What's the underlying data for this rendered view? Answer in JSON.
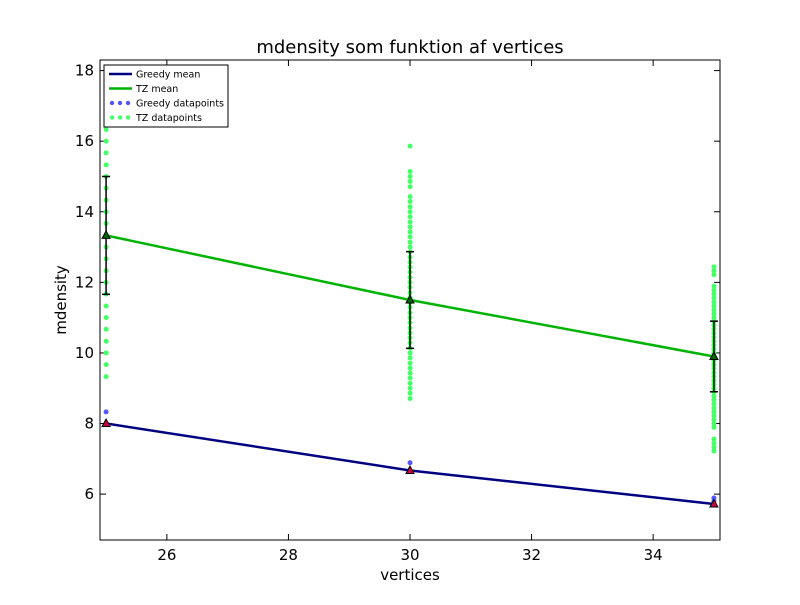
{
  "chart_data": {
    "type": "line",
    "title": "mdensity som funktion af vertices",
    "xlabel": "vertices",
    "ylabel": "mdensity",
    "xlim": [
      24.9,
      35.1
    ],
    "ylim": [
      4.7,
      18.3
    ],
    "xticks": [
      26,
      28,
      30,
      32,
      34
    ],
    "yticks": [
      6,
      8,
      10,
      12,
      14,
      16,
      18
    ],
    "grid": false,
    "legend_position": "top-left",
    "x": [
      25,
      30,
      35
    ],
    "series": [
      {
        "name": "Greedy mean",
        "color": "#000080",
        "values": [
          8.0,
          6.67,
          5.72
        ]
      },
      {
        "name": "TZ mean",
        "color": "#00b300",
        "values": [
          13.33,
          11.5,
          9.9
        ],
        "errors": [
          1.67,
          1.37,
          1.0
        ]
      }
    ],
    "scatter_series": [
      {
        "name": "Greedy datapoints",
        "color": "#5555ff",
        "points": {
          "25": [
            8.0,
            8.33
          ],
          "30": [
            6.67,
            6.89
          ],
          "35": [
            5.72,
            5.8,
            5.89
          ]
        }
      },
      {
        "name": "TZ datapoints",
        "color": "#44ff66",
        "points": {
          "25": [
            9.33,
            9.67,
            10.0,
            10.33,
            10.67,
            11.0,
            11.33,
            11.67,
            12.0,
            12.33,
            12.67,
            13.0,
            13.33,
            13.67,
            14.0,
            14.33,
            14.67,
            15.0,
            15.33,
            15.67,
            16.0,
            16.33,
            16.67,
            17.0
          ],
          "30": [
            8.71,
            8.86,
            9.0,
            9.14,
            9.29,
            9.43,
            9.57,
            9.71,
            9.86,
            10.0,
            10.14,
            10.29,
            10.43,
            10.57,
            10.71,
            10.86,
            11.0,
            11.14,
            11.29,
            11.43,
            11.57,
            11.71,
            11.86,
            12.0,
            12.14,
            12.29,
            12.43,
            12.57,
            12.71,
            12.86,
            13.0,
            13.14,
            13.29,
            13.43,
            13.57,
            13.71,
            13.86,
            14.0,
            14.14,
            14.29,
            14.43,
            14.71,
            14.86,
            15.0,
            15.14,
            15.86
          ],
          "35": [
            7.22,
            7.33,
            7.44,
            7.56,
            7.89,
            8.0,
            8.11,
            8.22,
            8.33,
            8.44,
            8.56,
            8.67,
            8.78,
            8.89,
            9.0,
            9.11,
            9.22,
            9.33,
            9.44,
            9.56,
            9.67,
            9.78,
            9.89,
            10.0,
            10.11,
            10.22,
            10.33,
            10.44,
            10.56,
            10.67,
            10.78,
            10.89,
            11.0,
            11.11,
            11.22,
            11.33,
            11.44,
            11.56,
            11.67,
            11.78,
            11.89,
            12.22,
            12.33,
            12.44
          ]
        }
      }
    ]
  }
}
